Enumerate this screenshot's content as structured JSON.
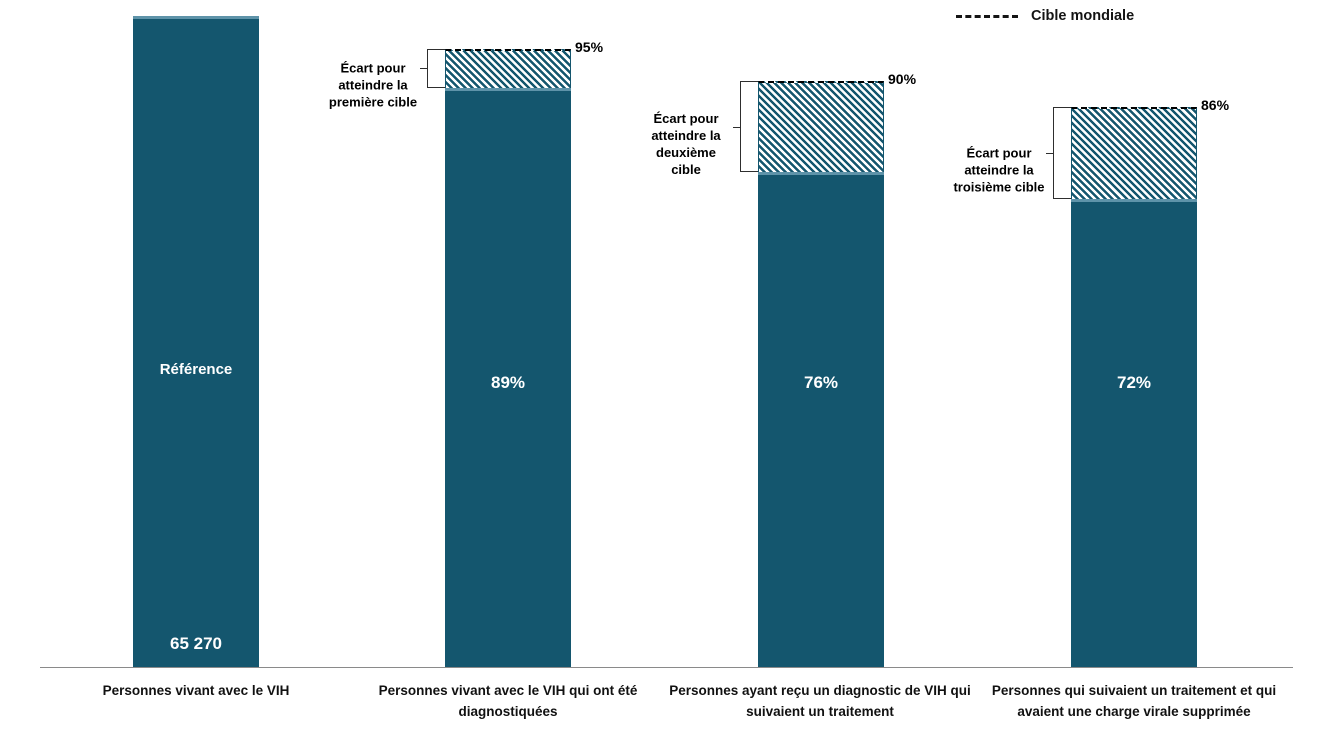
{
  "chart_data": {
    "type": "bar",
    "title": "",
    "legend_label": "Cible mondiale",
    "ylim_pct": [
      0,
      100
    ],
    "categories": [
      "Personnes vivant avec le VIH",
      "Personnes vivant avec le VIH qui ont été diagnostiquées",
      "Personnes ayant reçu un diagnostic de VIH qui suivaient un traitement",
      "Personnes qui suivaient un traitement et qui avaient une charge virale supprimée"
    ],
    "bars": [
      {
        "value_pct": 100,
        "inner_label": "Référence",
        "value_label": "65 270"
      },
      {
        "value_pct": 89,
        "inner_label": "89%",
        "target_pct": 95,
        "target_label": "95%",
        "gap_annotation": "Écart pour atteindre la première cible"
      },
      {
        "value_pct": 76,
        "inner_label": "76%",
        "target_pct": 90,
        "target_label": "90%",
        "gap_annotation": "Écart pour atteindre la deuxième cible"
      },
      {
        "value_pct": 72,
        "inner_label": "72%",
        "target_pct": 86,
        "target_label": "86%",
        "gap_annotation": "Écart pour atteindre la troisième cible"
      }
    ],
    "colors": {
      "bar": "#14566E",
      "bar_cap": "#5E93A9",
      "hatch_stripe": "#14566E",
      "target_line": "#000000",
      "axis_line": "#8A8A8A"
    }
  }
}
